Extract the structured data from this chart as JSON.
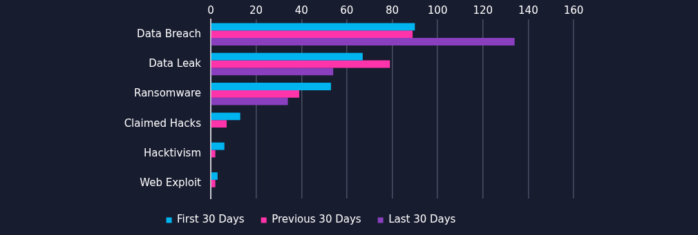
{
  "chart_data": {
    "type": "bar",
    "orientation": "horizontal",
    "categories": [
      "Data Breach",
      "Data Leak",
      "Ransomware",
      "Claimed Hacks",
      "Hacktivism",
      "Web Exploit"
    ],
    "series": [
      {
        "name": "First 30 Days",
        "color": "#00b4f0",
        "values": [
          90,
          67,
          53,
          13,
          6,
          3
        ]
      },
      {
        "name": "Previous 30 Days",
        "color": "#ff33aa",
        "values": [
          89,
          79,
          39,
          7,
          2,
          2
        ]
      },
      {
        "name": "Last 30 Days",
        "color": "#8a3fbf",
        "values": [
          134,
          54,
          34,
          0,
          0,
          0
        ]
      }
    ],
    "xlim": [
      0,
      160
    ],
    "xticks": [
      0,
      20,
      40,
      60,
      80,
      100,
      120,
      140,
      160
    ],
    "grid": "x",
    "legend": "bottom"
  }
}
